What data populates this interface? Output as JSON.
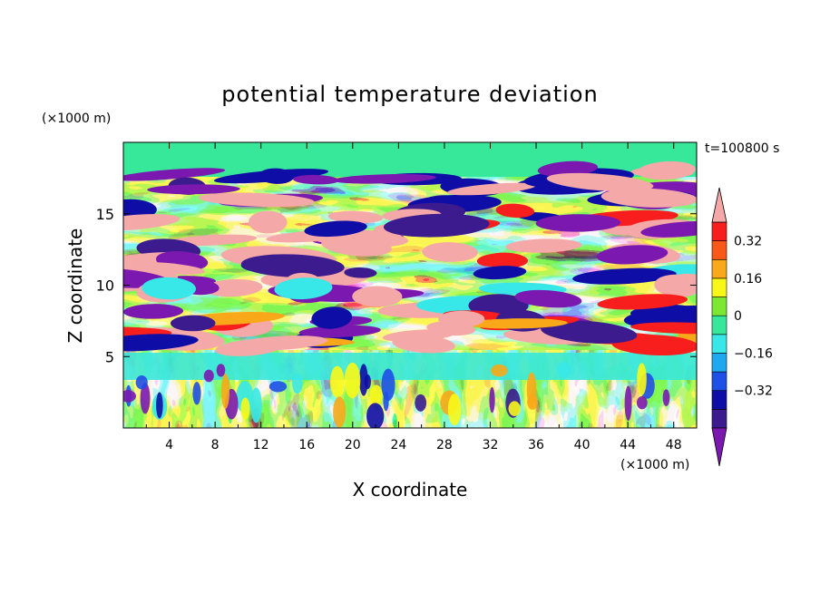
{
  "chart_data": {
    "type": "heatmap",
    "title": "potential temperature deviation",
    "time_label": "t=100800 s",
    "xlabel": "X coordinate",
    "ylabel": "Z coordinate",
    "x_unit": "(×1000 m)",
    "y_unit": "(×1000 m)",
    "xlim": [
      0,
      50
    ],
    "ylim": [
      0,
      20
    ],
    "x_ticks": [
      4,
      8,
      12,
      16,
      20,
      24,
      28,
      32,
      36,
      40,
      44,
      48
    ],
    "y_ticks": [
      5,
      10,
      15
    ],
    "colorbar": {
      "levels": [
        -0.4,
        -0.32,
        -0.24,
        -0.16,
        -0.08,
        0,
        0.08,
        0.16,
        0.24,
        0.32,
        0.4
      ],
      "labels": [
        "0.32",
        "0.16",
        "0",
        "−0.16",
        "−0.32"
      ],
      "label_values": [
        0.32,
        0.16,
        0,
        -0.16,
        -0.32
      ],
      "colors_low_to_high": [
        "#3c1b8e",
        "#0e0ea6",
        "#1e50e8",
        "#1ea8f0",
        "#38e8e8",
        "#38e89a",
        "#7ce832",
        "#f8f818",
        "#f8a818",
        "#f85818",
        "#f81e1e"
      ],
      "under_color": "#7a18b0",
      "over_color": "#f5a8a8",
      "extend": "both"
    },
    "field_regions": {
      "boundary_layer_top_z": 5.5,
      "description_values_upper": "layered positive and negative deviations between z≈5.5 and 18",
      "description_values_lower": "convective plumes below z≈5.5"
    }
  }
}
